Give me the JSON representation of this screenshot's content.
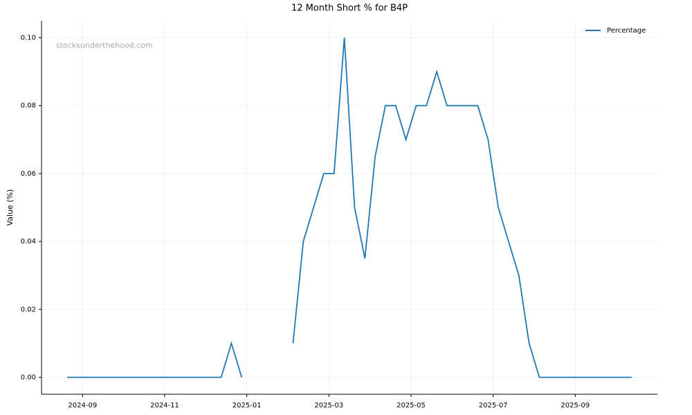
{
  "chart_data": {
    "type": "line",
    "title": "12 Month Short % for B4P",
    "ylabel": "Value (%)",
    "watermark": "stocksunderthehood.com",
    "legend": "upper right",
    "grid": true,
    "x": [
      "2024-08",
      "2024-08",
      "2024-08",
      "2024-08",
      "2024-09",
      "2024-09",
      "2024-09",
      "2024-09",
      "2024-10",
      "2024-10",
      "2024-10",
      "2024-10",
      "2024-11",
      "2024-11",
      "2024-11",
      "2024-11",
      "2024-12",
      "2024-12",
      "2024-12",
      "2024-12",
      "2025-01",
      "2025-01",
      "2025-01",
      "2025-01",
      "2025-02",
      "2025-02",
      "2025-02",
      "2025-02",
      "2025-03",
      "2025-03",
      "2025-03",
      "2025-03",
      "2025-04",
      "2025-04",
      "2025-04",
      "2025-04",
      "2025-05",
      "2025-05",
      "2025-05",
      "2025-05",
      "2025-06",
      "2025-06",
      "2025-06",
      "2025-06",
      "2025-07",
      "2025-07",
      "2025-07",
      "2025-07",
      "2025-08",
      "2025-08",
      "2025-08",
      "2025-08",
      "2025-09",
      "2025-09",
      "2025-09",
      "2025-09",
      "2025-10",
      "2025-10",
      "2025-10",
      "2025-10"
    ],
    "series": [
      {
        "name": "Percentage",
        "color": "#1f77b4",
        "values": [
          null,
          null,
          0,
          0,
          0,
          0,
          0,
          0,
          0,
          0,
          0,
          0,
          0,
          0,
          0,
          0,
          0,
          0,
          0.01,
          0,
          null,
          null,
          null,
          null,
          0.01,
          0.04,
          0.05,
          0.06,
          0.06,
          0.1,
          0.05,
          0.035,
          0.065,
          0.08,
          0.08,
          0.07,
          0.08,
          0.08,
          0.09,
          0.08,
          0.08,
          0.08,
          0.08,
          0.07,
          0.05,
          0.04,
          0.03,
          0.01,
          0,
          0,
          0,
          0,
          0,
          0,
          0,
          0,
          0,
          0,
          null,
          null
        ]
      }
    ],
    "xlim": [
      "2024-08",
      "2025-10"
    ],
    "xticks": [
      "2024-09",
      "2024-11",
      "2025-01",
      "2025-03",
      "2025-05",
      "2025-07",
      "2025-09"
    ],
    "ylim": [
      -0.005,
      0.105
    ],
    "yticks": [
      {
        "value": 0,
        "label": "0.00"
      },
      {
        "value": 0.02,
        "label": "0.02"
      },
      {
        "value": 0.04,
        "label": "0.04"
      },
      {
        "value": 0.06,
        "label": "0.06"
      },
      {
        "value": 0.08,
        "label": "0.08"
      },
      {
        "value": 0.1,
        "label": "0.10"
      }
    ]
  }
}
